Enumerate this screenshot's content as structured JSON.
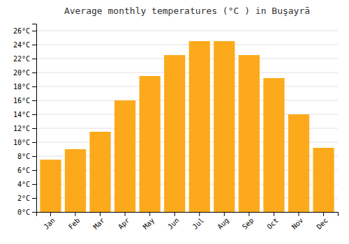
{
  "chart_data": {
    "type": "bar",
    "title": "Average monthly temperatures (°C ) in Buşayrā",
    "categories": [
      "Jan",
      "Feb",
      "Mar",
      "Apr",
      "May",
      "Jun",
      "Jul",
      "Aug",
      "Sep",
      "Oct",
      "Nov",
      "Dec"
    ],
    "values": [
      7.5,
      9.0,
      11.5,
      16.0,
      19.5,
      22.5,
      24.5,
      24.5,
      22.5,
      19.2,
      14.0,
      9.2
    ],
    "color": "#FCAA1B",
    "ylim": [
      0,
      27
    ],
    "yticks": [
      {
        "value": 0,
        "label": "0°C"
      },
      {
        "value": 2,
        "label": "2°C"
      },
      {
        "value": 4,
        "label": "4°C"
      },
      {
        "value": 6,
        "label": "6°C"
      },
      {
        "value": 8,
        "label": "8°C"
      },
      {
        "value": 10,
        "label": "10°C"
      },
      {
        "value": 12,
        "label": "12°C"
      },
      {
        "value": 14,
        "label": "14°C"
      },
      {
        "value": 16,
        "label": "16°C"
      },
      {
        "value": 18,
        "label": "18°C"
      },
      {
        "value": 20,
        "label": "20°C"
      },
      {
        "value": 22,
        "label": "22°C"
      },
      {
        "value": 24,
        "label": "24°C"
      },
      {
        "value": 26,
        "label": "26°C"
      }
    ],
    "grid": true
  }
}
